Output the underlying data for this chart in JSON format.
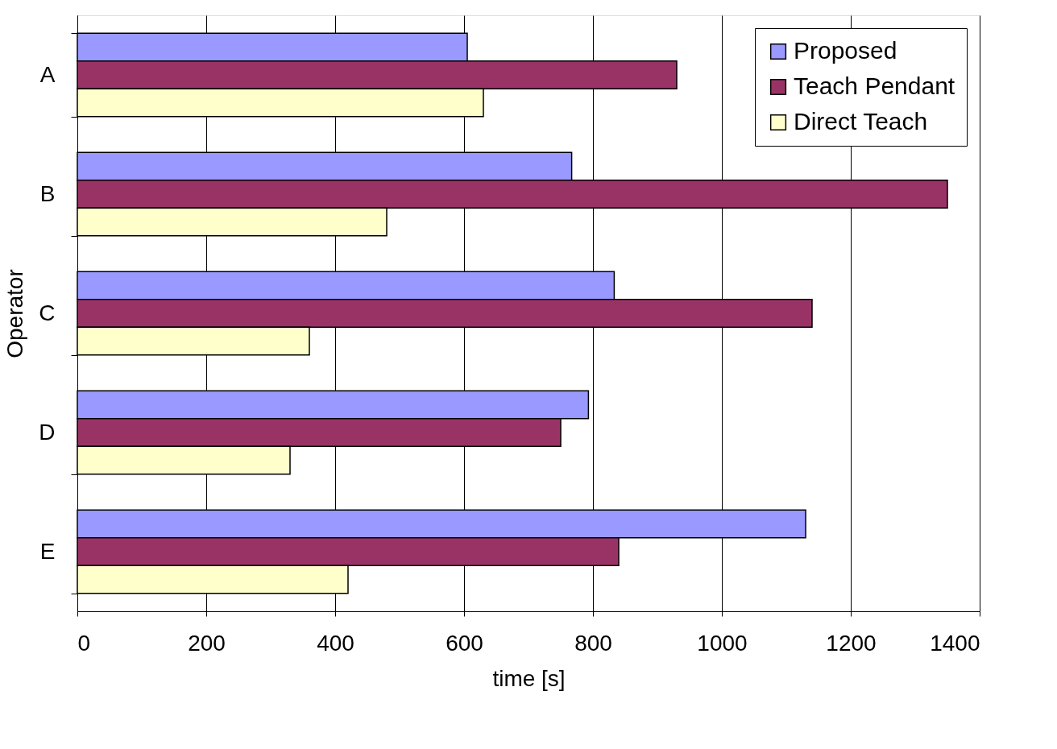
{
  "chart_data": {
    "type": "bar",
    "orientation": "horizontal",
    "xlabel": "time [s]",
    "ylabel": "Operator",
    "categories": [
      "A",
      "B",
      "C",
      "D",
      "E"
    ],
    "series": [
      {
        "name": "Proposed",
        "color": "#9999ff",
        "values": [
          605,
          767,
          833,
          793,
          1130
        ]
      },
      {
        "name": "Teach Pendant",
        "color": "#993366",
        "values": [
          930,
          1350,
          1140,
          750,
          840
        ]
      },
      {
        "name": "Direct Teach",
        "color": "#ffffcc",
        "values": [
          630,
          480,
          360,
          330,
          420
        ]
      }
    ],
    "xlim": [
      0,
      1400
    ],
    "xticks": [
      0,
      200,
      400,
      600,
      800,
      1000,
      1200,
      1400
    ],
    "grid": "x",
    "legend": "top right"
  }
}
